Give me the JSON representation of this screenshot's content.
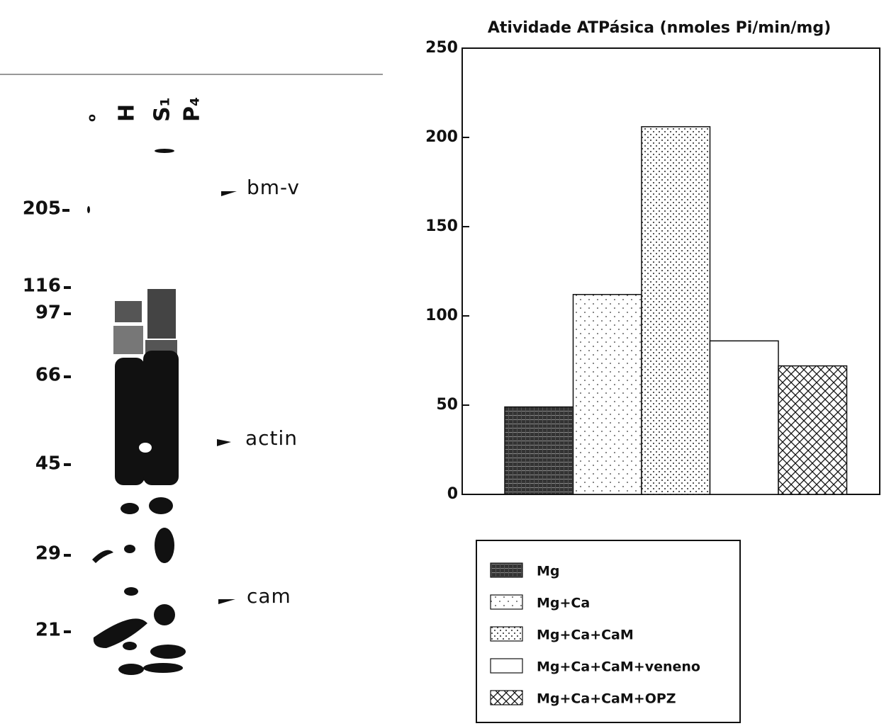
{
  "gel": {
    "lanes": [
      "o",
      "H",
      "S₁",
      "P₄"
    ],
    "markers": [
      "205",
      "116",
      "97",
      "66",
      "45",
      "29",
      "21"
    ],
    "arrows": [
      "bm-v",
      "actin",
      "cam"
    ]
  },
  "chart_data": {
    "type": "bar",
    "title": "Atividade ATPásica (nmoles Pi/min/mg)",
    "categories": [
      "Mg",
      "Mg+Ca",
      "Mg+Ca+CaM",
      "Mg+Ca+CaM+veneno",
      "Mg+Ca+CaM+OPZ"
    ],
    "values": [
      49,
      112,
      206,
      86,
      72
    ],
    "color": "#222222",
    "ylim": [
      0,
      250
    ],
    "yticks": [
      0,
      50,
      100,
      150,
      200,
      250
    ],
    "grid": false,
    "legend": "bottom"
  }
}
